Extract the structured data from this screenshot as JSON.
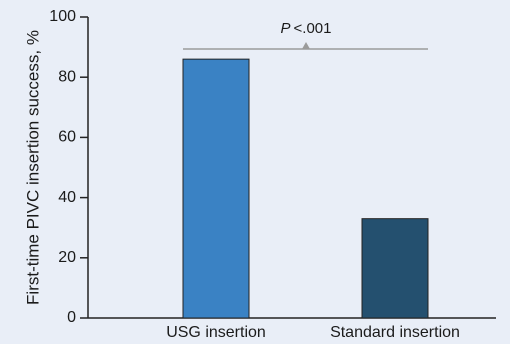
{
  "chart_data": {
    "type": "bar",
    "categories": [
      "USG insertion",
      "Standard insertion"
    ],
    "values": [
      86,
      33
    ],
    "title": "",
    "xlabel": "",
    "ylabel": "First-time PIVC insertion success, %",
    "ylim": [
      0,
      100
    ],
    "yticks": [
      0,
      20,
      40,
      60,
      80,
      100
    ],
    "grid": false,
    "annotation": {
      "prefix": "P",
      "text": "<.001"
    },
    "colors": {
      "background": "#e9eef7",
      "axis": "#222222",
      "bracket": "#9b9b9b",
      "bars": [
        "#3a82c4",
        "#24506f"
      ]
    }
  }
}
